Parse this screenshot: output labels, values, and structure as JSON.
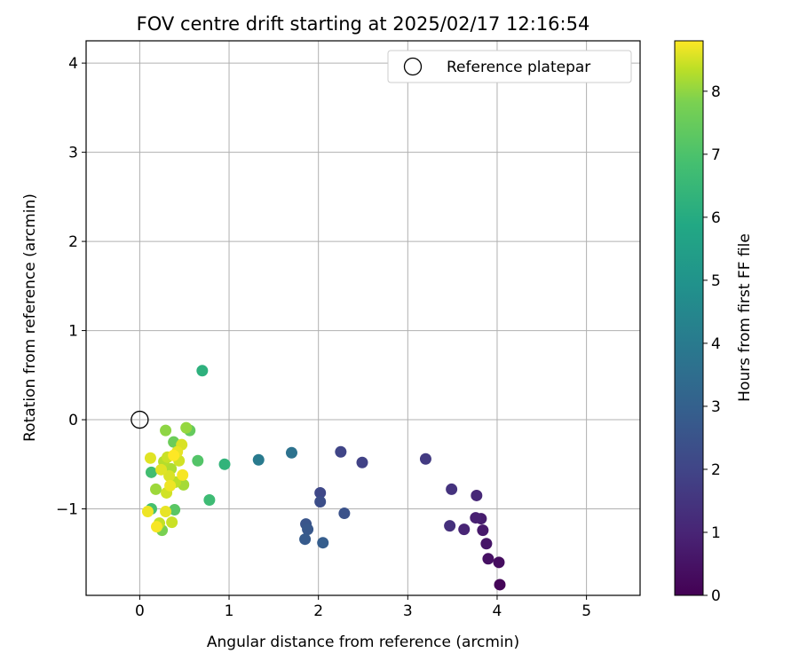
{
  "chart_data": {
    "type": "scatter",
    "title": "FOV centre drift starting at 2025/02/17 12:16:54",
    "xlabel": "Angular distance from reference (arcmin)",
    "ylabel": "Rotation from reference (arcmin)",
    "xlim": [
      -0.6,
      5.6
    ],
    "ylim": [
      -1.97,
      4.25
    ],
    "xticks": [
      0,
      1,
      2,
      3,
      4,
      5
    ],
    "yticks": [
      -1,
      0,
      1,
      2,
      3,
      4
    ],
    "xtick_labels": [
      "0",
      "1",
      "2",
      "3",
      "4",
      "5"
    ],
    "ytick_labels": [
      "−1",
      "0",
      "1",
      "2",
      "3",
      "4"
    ],
    "grid": true,
    "legend": {
      "placement": "upper-right",
      "label": "Reference platepar"
    },
    "reference_point": {
      "x": 0,
      "y": 0
    },
    "colorbar": {
      "label": "Hours from first FF file",
      "colormap": "viridis",
      "range": [
        0,
        8.8
      ],
      "ticks": [
        0,
        1,
        2,
        3,
        4,
        5,
        6,
        7,
        8
      ],
      "tick_labels": [
        "0",
        "1",
        "2",
        "3",
        "4",
        "5",
        "6",
        "7",
        "8"
      ]
    },
    "points": [
      {
        "x": 4.03,
        "y": -1.85,
        "c": 0.1
      },
      {
        "x": 4.02,
        "y": -1.6,
        "c": 0.3
      },
      {
        "x": 3.9,
        "y": -1.56,
        "c": 0.4
      },
      {
        "x": 3.88,
        "y": -1.39,
        "c": 0.5
      },
      {
        "x": 3.84,
        "y": -1.24,
        "c": 0.6
      },
      {
        "x": 3.82,
        "y": -1.11,
        "c": 0.7
      },
      {
        "x": 3.76,
        "y": -1.1,
        "c": 0.8
      },
      {
        "x": 3.63,
        "y": -1.23,
        "c": 0.9
      },
      {
        "x": 3.77,
        "y": -0.85,
        "c": 1.0
      },
      {
        "x": 3.47,
        "y": -1.19,
        "c": 1.2
      },
      {
        "x": 3.49,
        "y": -0.78,
        "c": 1.3
      },
      {
        "x": 3.2,
        "y": -0.44,
        "c": 1.5
      },
      {
        "x": 2.49,
        "y": -0.48,
        "c": 1.7
      },
      {
        "x": 2.25,
        "y": -0.36,
        "c": 1.8
      },
      {
        "x": 2.02,
        "y": -0.82,
        "c": 1.9
      },
      {
        "x": 2.02,
        "y": -0.92,
        "c": 2.1
      },
      {
        "x": 2.29,
        "y": -1.05,
        "c": 2.2
      },
      {
        "x": 1.86,
        "y": -1.17,
        "c": 2.3
      },
      {
        "x": 1.88,
        "y": -1.23,
        "c": 2.4
      },
      {
        "x": 1.85,
        "y": -1.34,
        "c": 2.5
      },
      {
        "x": 2.05,
        "y": -1.38,
        "c": 2.6
      },
      {
        "x": 1.7,
        "y": -0.37,
        "c": 3.3
      },
      {
        "x": 1.33,
        "y": -0.45,
        "c": 3.6
      },
      {
        "x": 0.95,
        "y": -0.5,
        "c": 5.7
      },
      {
        "x": 0.7,
        "y": 0.55,
        "c": 5.6
      },
      {
        "x": 0.78,
        "y": -0.9,
        "c": 6.0
      },
      {
        "x": 0.13,
        "y": -0.59,
        "c": 6.1
      },
      {
        "x": 0.13,
        "y": -1.0,
        "c": 6.2
      },
      {
        "x": 0.65,
        "y": -0.46,
        "c": 6.4
      },
      {
        "x": 0.39,
        "y": -1.01,
        "c": 6.5
      },
      {
        "x": 0.56,
        "y": -0.12,
        "c": 6.7
      },
      {
        "x": 0.38,
        "y": -0.25,
        "c": 6.8
      },
      {
        "x": 0.25,
        "y": -1.24,
        "c": 7.0
      },
      {
        "x": 0.29,
        "y": -0.12,
        "c": 7.3
      },
      {
        "x": 0.52,
        "y": -0.09,
        "c": 7.4
      },
      {
        "x": 0.18,
        "y": -0.78,
        "c": 7.5
      },
      {
        "x": 0.49,
        "y": -0.73,
        "c": 7.6
      },
      {
        "x": 0.35,
        "y": -0.55,
        "c": 7.7
      },
      {
        "x": 0.27,
        "y": -0.47,
        "c": 7.8
      },
      {
        "x": 0.4,
        "y": -0.7,
        "c": 7.9
      },
      {
        "x": 0.22,
        "y": -1.16,
        "c": 8.0
      },
      {
        "x": 0.36,
        "y": -1.15,
        "c": 8.1
      },
      {
        "x": 0.31,
        "y": -0.42,
        "c": 8.1
      },
      {
        "x": 0.44,
        "y": -0.46,
        "c": 8.2
      },
      {
        "x": 0.3,
        "y": -0.82,
        "c": 8.2
      },
      {
        "x": 0.47,
        "y": -0.28,
        "c": 8.3
      },
      {
        "x": 0.33,
        "y": -0.63,
        "c": 8.3
      },
      {
        "x": 0.24,
        "y": -0.56,
        "c": 8.4
      },
      {
        "x": 0.12,
        "y": -0.43,
        "c": 8.4
      },
      {
        "x": 0.29,
        "y": -1.03,
        "c": 8.5
      },
      {
        "x": 0.42,
        "y": -0.36,
        "c": 8.5
      },
      {
        "x": 0.34,
        "y": -0.74,
        "c": 8.6
      },
      {
        "x": 0.09,
        "y": -1.03,
        "c": 8.6
      },
      {
        "x": 0.48,
        "y": -0.62,
        "c": 8.7
      },
      {
        "x": 0.19,
        "y": -1.2,
        "c": 8.7
      },
      {
        "x": 0.38,
        "y": -0.4,
        "c": 8.8
      }
    ]
  }
}
